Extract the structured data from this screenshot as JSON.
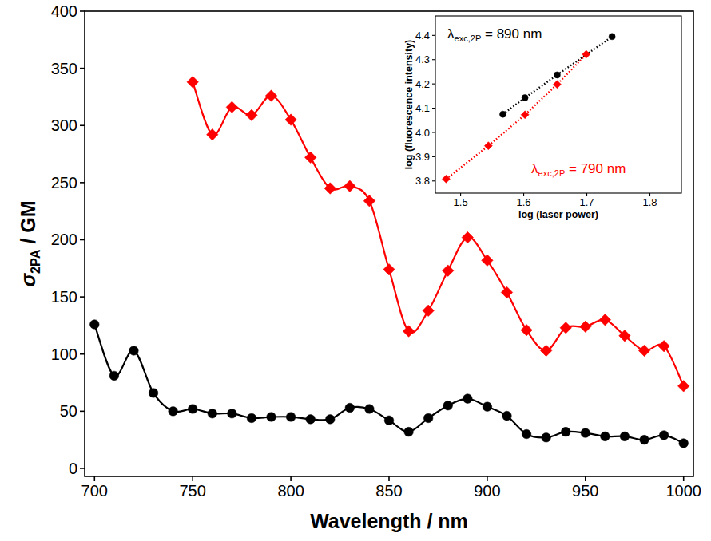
{
  "chart_data": [
    {
      "type": "line",
      "x_label": "Wavelength / nm",
      "y_label": {
        "symbol": "σ",
        "subscript": "2PA",
        "text": " / GM"
      },
      "xlim": [
        695,
        1005
      ],
      "xticks": [
        700,
        750,
        800,
        850,
        900,
        950,
        1000
      ],
      "ylim": [
        -7,
        400
      ],
      "yticks": [
        0,
        50,
        100,
        150,
        200,
        250,
        300,
        350,
        400
      ],
      "series": [
        {
          "color": "#ff0000",
          "marker": "diamond",
          "line_style": "solid",
          "x": [
            750,
            760,
            770,
            780,
            790,
            800,
            810,
            820,
            830,
            840,
            850,
            860,
            870,
            880,
            890,
            900,
            910,
            920,
            930,
            940,
            950,
            960,
            970,
            980,
            990,
            1000
          ],
          "values": [
            338,
            292,
            316,
            309,
            326,
            305,
            272,
            245,
            247,
            234,
            174,
            120,
            138,
            173,
            202,
            182,
            154,
            121,
            103,
            123,
            124,
            130,
            116,
            103,
            107,
            72
          ]
        },
        {
          "color": "#000000",
          "marker": "circle",
          "line_style": "solid",
          "x": [
            700,
            710,
            720,
            730,
            740,
            750,
            760,
            770,
            780,
            790,
            800,
            810,
            820,
            830,
            840,
            850,
            860,
            870,
            880,
            890,
            900,
            910,
            920,
            930,
            940,
            950,
            960,
            970,
            980,
            990,
            1000
          ],
          "values": [
            126,
            81,
            103,
            66,
            50,
            52,
            48,
            48,
            44,
            45,
            45,
            43,
            43,
            53,
            52,
            42,
            32,
            44,
            55,
            61,
            54,
            46,
            30,
            27,
            32,
            31,
            28,
            28,
            25,
            29,
            22
          ]
        }
      ]
    },
    {
      "type": "scatter",
      "x_label": "log (laser power)",
      "y_label": "log (fluorescence intensity)",
      "xlim": [
        1.46,
        1.85
      ],
      "xticks": [
        1.5,
        1.6,
        1.7,
        1.8
      ],
      "ylim": [
        3.75,
        4.48
      ],
      "yticks": [
        3.8,
        3.9,
        {
          "value": 4,
          "label": "4.0"
        },
        4.1,
        4.2,
        4.3,
        4.4
      ],
      "annotations": [
        {
          "symbol": "λ",
          "subscript": "exc,2P",
          "text": " = 890 nm",
          "color": "#000000"
        },
        {
          "symbol": "λ",
          "subscript": "exc,2P",
          "text": " = 790 nm",
          "color": "#ff0000"
        }
      ],
      "series": [
        {
          "color": "#000000",
          "marker": "circle",
          "line_style": "dotted",
          "x": [
            1.567,
            1.602,
            1.653,
            1.74
          ],
          "values": [
            4.075,
            4.143,
            4.237,
            4.395
          ]
        },
        {
          "color": "#ff0000",
          "marker": "diamond",
          "line_style": "dotted",
          "x": [
            1.477,
            1.544,
            1.602,
            1.653,
            1.699
          ],
          "values": [
            3.808,
            3.945,
            4.073,
            4.198,
            4.322
          ]
        }
      ]
    }
  ]
}
